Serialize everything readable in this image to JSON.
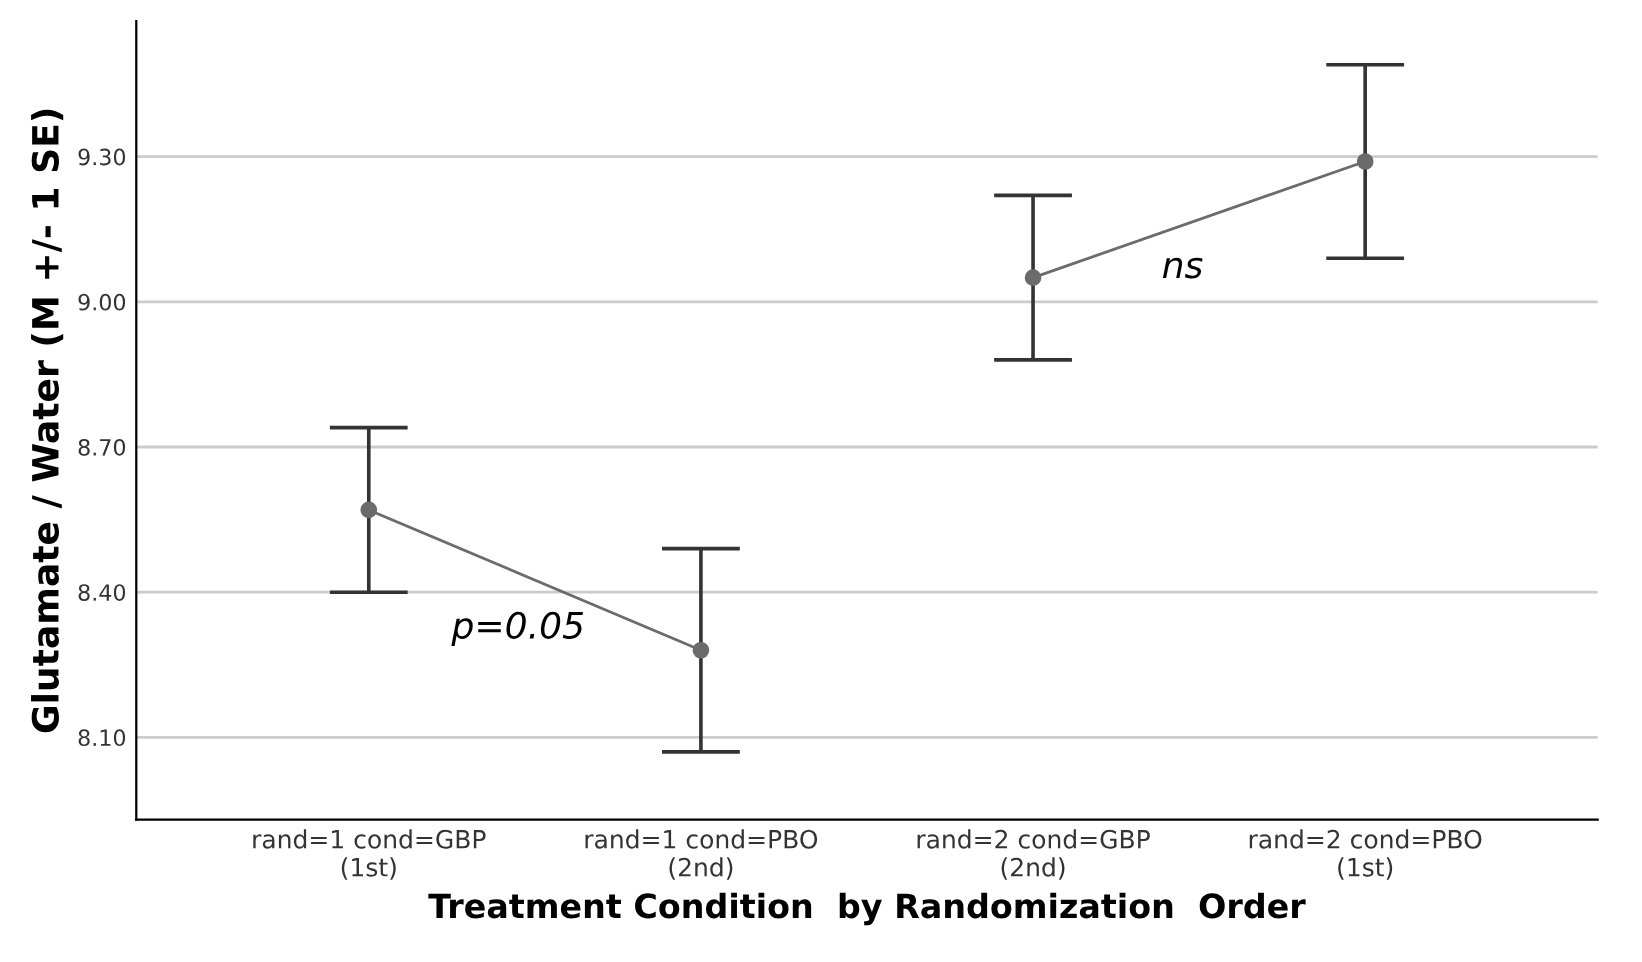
{
  "chart_data": {
    "type": "line",
    "xlabel": "Treatment Condition  by Randomization  Order",
    "ylabel": "Glutamate / Water (M +/- 1 SE)",
    "categories": [
      "rand=1 cond=GBP\n(1st)",
      "rand=1 cond=PBO\n(2nd)",
      "rand=2 cond=GBP\n(2nd)",
      "rand=2 cond=PBO\n(1st)"
    ],
    "series": [
      {
        "color": "#6b6b6b",
        "values": [
          8.57,
          8.28,
          9.05,
          9.29
        ],
        "errors": [
          [
            8.4,
            8.74
          ],
          [
            8.07,
            8.49
          ],
          [
            8.88,
            9.22
          ],
          [
            9.09,
            9.49
          ]
        ]
      }
    ],
    "ylim": [
      7.93,
      9.58
    ],
    "yticks": [
      {
        "value": 8.1,
        "label": "8.10"
      },
      {
        "value": 8.4,
        "label": "8.40"
      },
      {
        "value": 8.7,
        "label": "8.70"
      },
      {
        "value": 9.0,
        "label": "9.00"
      },
      {
        "value": 9.3,
        "label": "9.30"
      }
    ],
    "grid": "y",
    "marker": "circle",
    "line_style": "solid",
    "annotations": [
      "p=0.05",
      "ns"
    ]
  }
}
